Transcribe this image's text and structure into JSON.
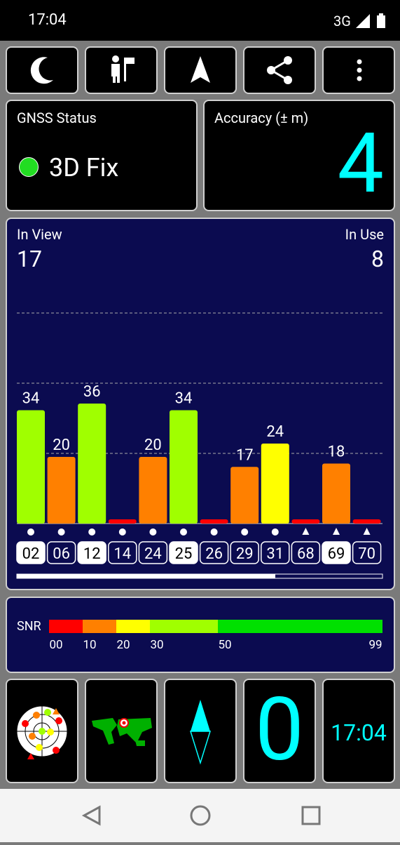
{
  "status_bar": {
    "time": "17:04",
    "network": "3G"
  },
  "gnss_status": {
    "label": "GNSS Status",
    "fix": "3D Fix"
  },
  "accuracy": {
    "label": "Accuracy (± m)",
    "value": "4"
  },
  "sky": {
    "in_view_label": "In View",
    "in_view": "17",
    "in_use_label": "In Use",
    "in_use": "8",
    "satellites": [
      {
        "id": "02",
        "snr": 34,
        "marker": "circle",
        "highlight": true
      },
      {
        "id": "06",
        "snr": 20,
        "marker": "circle",
        "highlight": false
      },
      {
        "id": "12",
        "snr": 36,
        "marker": "circle",
        "highlight": true
      },
      {
        "id": "14",
        "snr": 0,
        "marker": "circle",
        "highlight": false
      },
      {
        "id": "24",
        "snr": 20,
        "marker": "circle",
        "highlight": false
      },
      {
        "id": "25",
        "snr": 34,
        "marker": "circle",
        "highlight": true
      },
      {
        "id": "26",
        "snr": 0,
        "marker": "circle",
        "highlight": false
      },
      {
        "id": "29",
        "snr": 17,
        "marker": "circle",
        "highlight": false
      },
      {
        "id": "31",
        "snr": 24,
        "marker": "circle",
        "highlight": false
      },
      {
        "id": "68",
        "snr": 0,
        "marker": "triangle",
        "highlight": false
      },
      {
        "id": "69",
        "snr": 18,
        "marker": "triangle",
        "highlight": true
      },
      {
        "id": "70",
        "snr": 0,
        "marker": "triangle",
        "highlight": false
      }
    ]
  },
  "snr_legend": {
    "label": "SNR",
    "stops": [
      {
        "value": 0,
        "label": "00"
      },
      10,
      20,
      30,
      50,
      99
    ],
    "colors": [
      "#ff0000",
      "#ff8000",
      "#ffff00",
      "#a0ff00",
      "#00e000"
    ]
  },
  "tiles": {
    "speed": "0",
    "clock": "17:04"
  }
}
